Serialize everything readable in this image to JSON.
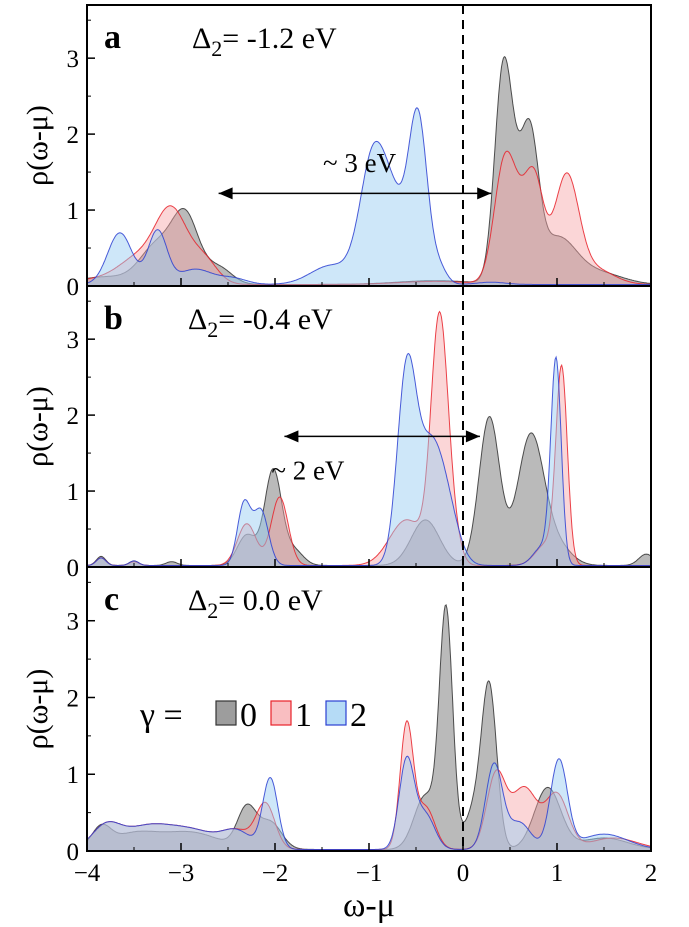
{
  "colors": {
    "gamma0": "#333333",
    "gamma0_fill": "#8c8c8c",
    "gamma1": "#e8222a",
    "gamma1_fill": "#f6a3a6",
    "gamma2": "#2b3fd1",
    "gamma2_fill": "#99cdf3"
  },
  "figure": {
    "xlabel": "ω-μ",
    "ylabel": "ρ(ω-μ)",
    "xlim": [
      -4,
      2
    ],
    "xticks": [
      -4,
      -3,
      -2,
      -1,
      0,
      1,
      2
    ],
    "xtick_labels": [
      "−4",
      "−3",
      "−2",
      "−1",
      "0",
      "1",
      "2"
    ],
    "vline_x": 0
  },
  "legend": {
    "symbol": "γ =",
    "entries": [
      {
        "label": "0",
        "series": 0
      },
      {
        "label": "1",
        "series": 1
      },
      {
        "label": "2",
        "series": 2
      }
    ]
  },
  "chart_data": [
    {
      "type": "area",
      "panel": "a",
      "title_prefix": "Δ",
      "title_sub": "2",
      "title_suffix": "= -1.2 eV",
      "ylim": [
        0,
        3.7
      ],
      "yticks": [
        0,
        1,
        2,
        3
      ],
      "annotation": {
        "text": "~ 3 eV",
        "arrow_from": -2.6,
        "arrow_to": 0.3,
        "arrow_y": 1.22,
        "text_x": -1.1,
        "text_y": 1.5
      },
      "series": [
        {
          "name": "0",
          "peaks": [
            [
              -3.8,
              0.1,
              0.3
            ],
            [
              -3.25,
              0.5,
              0.18
            ],
            [
              -2.95,
              0.85,
              0.14
            ],
            [
              -2.6,
              0.22,
              0.14
            ],
            [
              -0.3,
              0.05,
              0.4
            ],
            [
              0.42,
              2.3,
              0.09
            ],
            [
              0.55,
              1.1,
              0.12
            ],
            [
              0.72,
              1.5,
              0.09
            ],
            [
              1.0,
              0.6,
              0.2
            ],
            [
              1.45,
              0.15,
              0.25
            ]
          ]
        },
        {
          "name": "1",
          "peaks": [
            [
              -3.8,
              0.08,
              0.3
            ],
            [
              -3.45,
              0.3,
              0.2
            ],
            [
              -3.1,
              0.95,
              0.17
            ],
            [
              -2.75,
              0.3,
              0.14
            ],
            [
              -0.3,
              0.04,
              0.4
            ],
            [
              0.44,
              1.55,
              0.11
            ],
            [
              0.6,
              0.55,
              0.1
            ],
            [
              0.76,
              1.3,
              0.1
            ],
            [
              1.1,
              1.4,
              0.13
            ],
            [
              1.4,
              0.2,
              0.2
            ]
          ]
        },
        {
          "name": "2",
          "peaks": [
            [
              -3.65,
              0.68,
              0.13
            ],
            [
              -3.25,
              0.7,
              0.1
            ],
            [
              -2.85,
              0.2,
              0.18
            ],
            [
              -2.45,
              0.08,
              0.15
            ],
            [
              -1.4,
              0.25,
              0.22
            ],
            [
              -0.95,
              1.7,
              0.14
            ],
            [
              -0.72,
              0.8,
              0.12
            ],
            [
              -0.48,
              2.2,
              0.1
            ],
            [
              -0.25,
              0.2,
              0.08
            ],
            [
              0.3,
              0.03,
              0.15
            ]
          ]
        }
      ]
    },
    {
      "type": "area",
      "panel": "b",
      "title_prefix": "Δ",
      "title_sub": "2",
      "title_suffix": "= -0.4 eV",
      "ylim": [
        0,
        3.7
      ],
      "yticks": [
        0,
        1,
        2,
        3
      ],
      "annotation": {
        "text": "~ 2 eV",
        "arrow_from": -1.9,
        "arrow_to": 0.18,
        "arrow_y": 1.72,
        "text_x": -1.65,
        "text_y": 1.15
      },
      "series": [
        {
          "name": "0",
          "peaks": [
            [
              -3.85,
              0.12,
              0.05
            ],
            [
              -3.5,
              0.06,
              0.05
            ],
            [
              -3.1,
              0.05,
              0.06
            ],
            [
              -2.3,
              0.4,
              0.1
            ],
            [
              -2.02,
              1.25,
              0.09
            ],
            [
              -1.8,
              0.2,
              0.1
            ],
            [
              -0.4,
              0.6,
              0.15
            ],
            [
              0.28,
              1.95,
              0.11
            ],
            [
              0.72,
              1.7,
              0.14
            ],
            [
              1.0,
              0.25,
              0.15
            ],
            [
              1.95,
              0.15,
              0.08
            ]
          ]
        },
        {
          "name": "1",
          "peaks": [
            [
              -3.85,
              0.1,
              0.05
            ],
            [
              -3.5,
              0.05,
              0.05
            ],
            [
              -2.3,
              0.55,
              0.1
            ],
            [
              -1.95,
              0.9,
              0.09
            ],
            [
              -0.6,
              0.6,
              0.18
            ],
            [
              -0.25,
              3.2,
              0.09
            ],
            [
              -0.1,
              0.3,
              0.08
            ],
            [
              1.05,
              2.5,
              0.06
            ],
            [
              0.9,
              0.3,
              0.12
            ]
          ]
        },
        {
          "name": "2",
          "peaks": [
            [
              -3.85,
              0.1,
              0.05
            ],
            [
              -3.5,
              0.06,
              0.05
            ],
            [
              -2.33,
              0.8,
              0.07
            ],
            [
              -2.15,
              0.72,
              0.08
            ],
            [
              -0.6,
              2.45,
              0.1
            ],
            [
              -0.35,
              1.5,
              0.14
            ],
            [
              -0.15,
              0.5,
              0.12
            ],
            [
              0.99,
              2.65,
              0.055
            ],
            [
              0.85,
              0.25,
              0.1
            ]
          ]
        }
      ]
    },
    {
      "type": "area",
      "panel": "c",
      "title_prefix": "Δ",
      "title_sub": "2",
      "title_suffix": "= 0.0 eV",
      "ylim": [
        0,
        3.7
      ],
      "yticks": [
        0,
        1,
        2,
        3
      ],
      "series": [
        {
          "name": "0",
          "peaks": [
            [
              -3.85,
              0.25,
              0.1
            ],
            [
              -3.5,
              0.2,
              0.25
            ],
            [
              -2.9,
              0.22,
              0.3
            ],
            [
              -2.3,
              0.52,
              0.1
            ],
            [
              -2.05,
              0.35,
              0.12
            ],
            [
              -0.4,
              0.7,
              0.12
            ],
            [
              -0.18,
              3.05,
              0.07
            ],
            [
              0.28,
              2.05,
              0.08
            ],
            [
              0.12,
              0.5,
              0.1
            ],
            [
              0.9,
              0.8,
              0.14
            ],
            [
              1.5,
              0.15,
              0.25
            ]
          ]
        },
        {
          "name": "1",
          "peaks": [
            [
              -3.8,
              0.28,
              0.15
            ],
            [
              -3.4,
              0.25,
              0.25
            ],
            [
              -2.9,
              0.25,
              0.3
            ],
            [
              -2.1,
              0.58,
              0.1
            ],
            [
              -2.4,
              0.2,
              0.15
            ],
            [
              -0.6,
              1.6,
              0.07
            ],
            [
              -0.4,
              0.55,
              0.1
            ],
            [
              0.35,
              0.95,
              0.1
            ],
            [
              0.65,
              0.8,
              0.14
            ],
            [
              1.0,
              0.7,
              0.12
            ],
            [
              1.6,
              0.15,
              0.25
            ]
          ]
        },
        {
          "name": "2",
          "peaks": [
            [
              -3.8,
              0.28,
              0.15
            ],
            [
              -3.4,
              0.25,
              0.25
            ],
            [
              -2.9,
              0.25,
              0.3
            ],
            [
              -2.05,
              0.92,
              0.08
            ],
            [
              -2.4,
              0.2,
              0.15
            ],
            [
              -0.6,
              1.15,
              0.08
            ],
            [
              -0.4,
              0.45,
              0.1
            ],
            [
              0.33,
              1.1,
              0.09
            ],
            [
              0.6,
              0.35,
              0.12
            ],
            [
              1.02,
              1.15,
              0.09
            ],
            [
              1.5,
              0.2,
              0.25
            ]
          ]
        }
      ]
    }
  ]
}
